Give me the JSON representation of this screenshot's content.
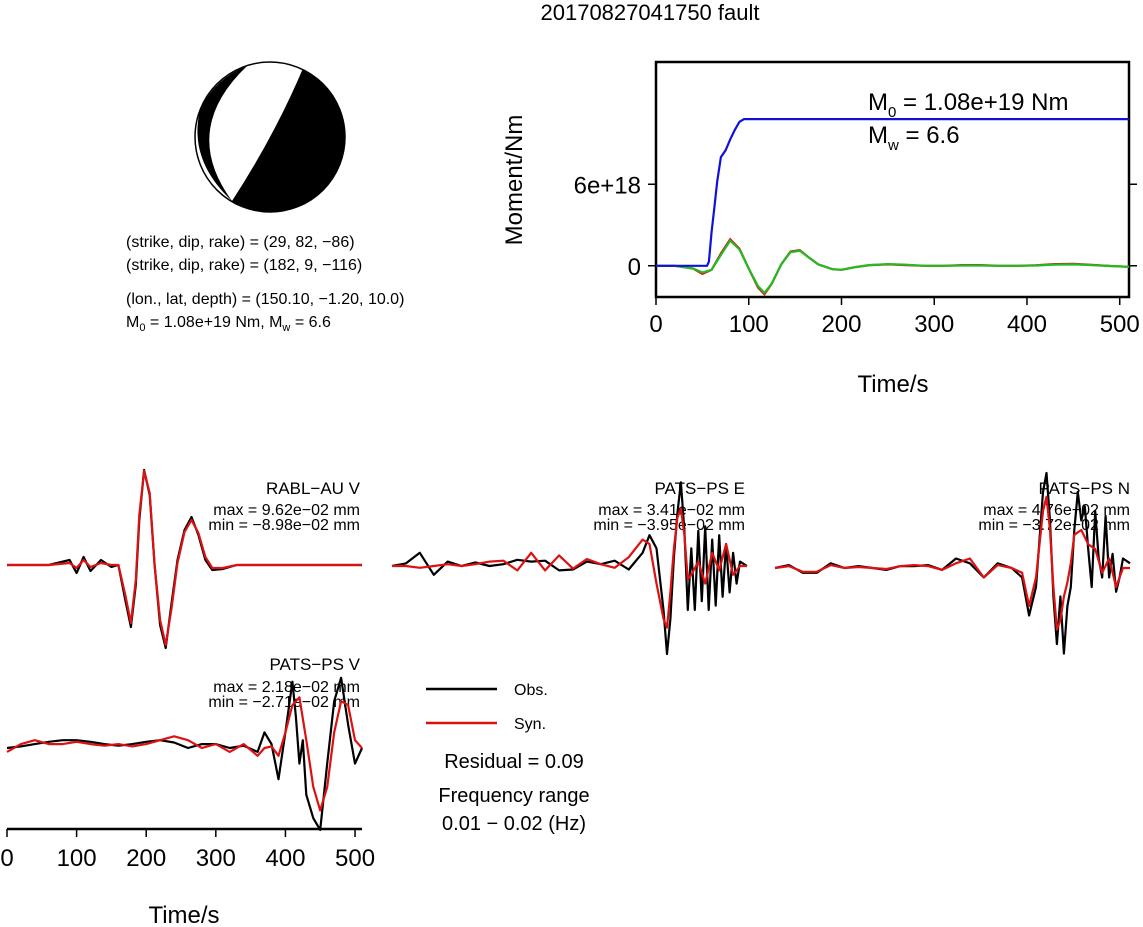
{
  "title": "20170827041750 fault",
  "focal_mechanism": {
    "line1": "(strike, dip, rake) = (29, 82, −86)",
    "line2": "(strike, dip, rake) = (182, 9, −116)",
    "line3": "(lon., lat, depth) = (150.10, −1.20, 10.0)",
    "m0_prefix": "M",
    "m0_sub": "0",
    "m0_text": " = 1.08e+19 Nm, M",
    "mw_sub": "w",
    "mw_text": " = 6.6"
  },
  "colors": {
    "moment_curve": "#1010dd",
    "observed": "#000000",
    "synthetic": "#dd1111",
    "stf_green": "#22bb22"
  },
  "chart_data": [
    {
      "type": "line",
      "id": "moment",
      "ylabel": "Moment/Nm",
      "xlabel": "Time/s",
      "xlim": [
        0,
        510
      ],
      "ylim": [
        -2.3e+18,
        1.5e+19
      ],
      "xticks": [
        0,
        100,
        200,
        300,
        400,
        500
      ],
      "yticks": [
        {
          "value": 0,
          "label": "0"
        },
        {
          "value": 6e+18,
          "label": "6e+18"
        }
      ],
      "annotation": {
        "m0_sym": "M",
        "m0_sub": "0",
        "m0_val": " = 1.08e+19 Nm",
        "mw_sym": "M",
        "mw_sub": "w",
        "mw_val": " = 6.6"
      },
      "series": [
        {
          "role": "cumulative moment",
          "color": "#1010dd",
          "x": [
            0,
            55,
            57,
            60,
            63,
            66,
            70,
            75,
            80,
            85,
            90,
            95,
            100,
            150,
            200,
            250,
            300,
            350,
            400,
            450,
            510
          ],
          "y": [
            0,
            0,
            3e+17,
            2.5e+18,
            4.3e+18,
            6.2e+18,
            8e+18,
            8.5e+18,
            9.3e+18,
            1e+19,
            1.06e+19,
            1.08e+19,
            1.08e+19,
            1.08e+19,
            1.08e+19,
            1.08e+19,
            1.08e+19,
            1.08e+19,
            1.08e+19,
            1.08e+19,
            1.08e+19
          ]
        },
        {
          "role": "moment rate (green)",
          "color": "#22bb22",
          "x": [
            0,
            20,
            40,
            50,
            60,
            70,
            80,
            90,
            100,
            110,
            117,
            125,
            135,
            145,
            155,
            165,
            175,
            190,
            200,
            215,
            230,
            250,
            270,
            290,
            310,
            330,
            350,
            370,
            390,
            410,
            430,
            450,
            470,
            490,
            510
          ],
          "y": [
            0,
            0,
            -2e+17,
            -5e+17,
            -3e+17,
            8e+17,
            1.85e+18,
            1.2e+18,
            -2e+17,
            -1.5e+18,
            -2e+18,
            -1.3e+18,
            1e+17,
            1e+18,
            1.1e+18,
            6e+17,
            1e+17,
            -2.5e+17,
            -3e+17,
            -1e+17,
            5e+16,
            1.2e+17,
            8e+16,
            0,
            0,
            2e+16,
            2e+16,
            0,
            0,
            2e+16,
            8e+16,
            1e+17,
            4e+16,
            -2e+16,
            -8e+16
          ]
        },
        {
          "role": "moment rate (red)",
          "color": "#dd1111",
          "x": [
            0,
            20,
            40,
            50,
            60,
            70,
            80,
            90,
            100,
            110,
            117,
            125,
            135,
            145,
            155,
            165,
            175,
            190,
            200,
            215,
            230,
            250,
            270,
            290,
            310,
            330,
            350,
            370,
            390,
            410,
            430,
            450,
            470,
            490,
            510
          ],
          "y": [
            0,
            0,
            -2e+17,
            -6e+17,
            -3e+17,
            9e+17,
            1.95e+18,
            1.25e+18,
            -2e+17,
            -1.6e+18,
            -2.1e+18,
            -1.3e+18,
            1e+17,
            1.05e+18,
            1.15e+18,
            6e+17,
            1e+17,
            -2.5e+17,
            -3e+17,
            -1e+17,
            5e+16,
            1e+17,
            4e+16,
            0,
            0,
            5e+16,
            5e+16,
            0,
            0,
            4e+16,
            1.2e+17,
            1.4e+17,
            6e+16,
            -2e+16,
            -8e+16
          ]
        }
      ]
    },
    {
      "type": "line",
      "id": "rabl-v",
      "station": "RABL−AU V",
      "max_label": "max = 9.62e−02 mm",
      "min_label": "min = −8.98e−02 mm",
      "ylim": [
        -1.0,
        1.0
      ],
      "xlim": [
        0,
        510
      ],
      "series": [
        {
          "name": "Obs.",
          "color": "#000000",
          "x": [
            0,
            60,
            90,
            100,
            110,
            120,
            135,
            150,
            160,
            170,
            178,
            185,
            190,
            197,
            205,
            212,
            220,
            228,
            236,
            245,
            255,
            265,
            275,
            285,
            295,
            310,
            330,
            360,
            400,
            450,
            510
          ],
          "y": [
            0,
            0,
            0.05,
            -0.08,
            0.08,
            -0.06,
            0.05,
            -0.02,
            0,
            -0.35,
            -0.62,
            -0.2,
            0.45,
            0.95,
            0.7,
            0,
            -0.6,
            -0.83,
            -0.4,
            0.05,
            0.35,
            0.48,
            0.3,
            0.05,
            -0.05,
            -0.04,
            0,
            0,
            0,
            0,
            0
          ]
        },
        {
          "name": "Syn.",
          "color": "#dd1111",
          "x": [
            0,
            60,
            90,
            100,
            110,
            120,
            135,
            150,
            160,
            170,
            178,
            185,
            190,
            197,
            205,
            212,
            220,
            228,
            236,
            245,
            255,
            265,
            275,
            285,
            295,
            310,
            330,
            360,
            400,
            450,
            510
          ],
          "y": [
            0,
            0,
            0.02,
            -0.03,
            0.05,
            -0.02,
            0.02,
            0,
            0,
            -0.3,
            -0.58,
            -0.15,
            0.5,
            0.94,
            0.72,
            0,
            -0.55,
            -0.8,
            -0.45,
            0.02,
            0.33,
            0.45,
            0.32,
            0.08,
            -0.03,
            -0.03,
            0,
            0,
            0,
            0,
            0
          ]
        }
      ]
    },
    {
      "type": "line",
      "id": "pats-e",
      "station": "PATS−PS E",
      "max_label": "max = 3.41e−02 mm",
      "min_label": "min = −3.95e−02 mm",
      "ylim": [
        -1.0,
        1.0
      ],
      "xlim": [
        0,
        510
      ],
      "series": [
        {
          "name": "Obs.",
          "color": "#000000",
          "x": [
            0,
            20,
            40,
            60,
            80,
            100,
            120,
            140,
            160,
            180,
            200,
            220,
            240,
            260,
            280,
            300,
            320,
            340,
            360,
            370,
            380,
            390,
            395,
            400,
            405,
            410,
            415,
            420,
            425,
            430,
            435,
            440,
            445,
            450,
            455,
            460,
            465,
            470,
            475,
            480,
            485,
            490,
            495,
            500,
            510
          ],
          "y": [
            0,
            0.03,
            0.15,
            -0.1,
            0.05,
            0,
            0.04,
            0,
            0.02,
            0.07,
            0.05,
            0.06,
            -0.05,
            -0.04,
            0.05,
            0.02,
            0.06,
            -0.04,
            0.15,
            0.35,
            0.2,
            -0.5,
            -1.0,
            -0.6,
            0.1,
            0.6,
            0.95,
            0.4,
            -0.5,
            0.2,
            -0.5,
            0.4,
            -0.4,
            0.45,
            -0.5,
            0.3,
            -0.45,
            0.35,
            -0.35,
            0.25,
            -0.3,
            0.15,
            -0.2,
            0.05,
            0
          ]
        },
        {
          "name": "Syn.",
          "color": "#dd1111",
          "x": [
            0,
            20,
            40,
            60,
            80,
            100,
            120,
            140,
            160,
            180,
            200,
            220,
            240,
            260,
            280,
            300,
            320,
            340,
            360,
            370,
            380,
            390,
            395,
            400,
            405,
            410,
            415,
            420,
            425,
            430,
            440,
            450,
            460,
            470,
            480,
            490,
            500,
            510
          ],
          "y": [
            0,
            0,
            -0.02,
            0,
            0.02,
            0,
            0.02,
            0.05,
            0.06,
            -0.05,
            0.15,
            -0.05,
            0.12,
            -0.03,
            0.08,
            0.02,
            -0.02,
            0.1,
            0.3,
            0.25,
            -0.2,
            -0.6,
            -0.7,
            -0.3,
            0.2,
            0.55,
            0.65,
            0.35,
            -0.15,
            -0.1,
            0.05,
            -0.2,
            0.15,
            -0.05,
            0.25,
            -0.1,
            0,
            0
          ]
        }
      ]
    },
    {
      "type": "line",
      "id": "pats-n",
      "station": "PATS−PS N",
      "max_label": "max = 4.76e−02 mm",
      "min_label": "min = −3.72e−02 mm",
      "ylim": [
        -1.0,
        1.0
      ],
      "xlim": [
        0,
        510
      ],
      "series": [
        {
          "name": "Obs.",
          "color": "#000000",
          "x": [
            0,
            20,
            40,
            60,
            80,
            100,
            120,
            140,
            160,
            180,
            200,
            220,
            240,
            260,
            280,
            300,
            320,
            340,
            355,
            365,
            375,
            385,
            390,
            395,
            400,
            405,
            410,
            415,
            420,
            425,
            430,
            435,
            440,
            445,
            450,
            455,
            460,
            465,
            470,
            475,
            480,
            485,
            490,
            495,
            500,
            510
          ],
          "y": [
            0,
            0.03,
            -0.05,
            -0.05,
            0.05,
            0,
            0.02,
            0,
            -0.02,
            0.02,
            0.02,
            0.03,
            -0.02,
            0.1,
            0.05,
            -0.1,
            0.05,
            0,
            -0.1,
            -0.5,
            -0.2,
            0.8,
            1.0,
            0.5,
            -0.3,
            -0.8,
            -0.3,
            -0.9,
            -0.4,
            -0.2,
            0.4,
            0.8,
            0.5,
            0.65,
            0.2,
            -0.2,
            0.6,
            0.1,
            -0.1,
            0.55,
            -0.1,
            0.15,
            -0.25,
            -0.1,
            0.1,
            0.05
          ]
        },
        {
          "name": "Syn.",
          "color": "#dd1111",
          "x": [
            0,
            20,
            40,
            60,
            80,
            100,
            120,
            140,
            160,
            180,
            200,
            220,
            240,
            260,
            280,
            300,
            320,
            340,
            355,
            365,
            375,
            385,
            390,
            395,
            400,
            405,
            410,
            415,
            420,
            425,
            430,
            440,
            450,
            460,
            470,
            480,
            490,
            500,
            510
          ],
          "y": [
            0,
            0.02,
            -0.04,
            -0.04,
            0.03,
            0,
            0.01,
            0,
            -0.01,
            0.02,
            0.03,
            0.02,
            -0.02,
            0.05,
            0.1,
            -0.1,
            0.03,
            0,
            -0.05,
            -0.4,
            -0.1,
            0.6,
            0.75,
            0.4,
            -0.2,
            -0.65,
            -0.55,
            -0.3,
            -0.15,
            0.05,
            0.35,
            0.4,
            0.25,
            0.2,
            -0.05,
            0.1,
            -0.2,
            0,
            0
          ]
        }
      ]
    },
    {
      "type": "line",
      "id": "pats-v",
      "station": "PATS−PS V",
      "max_label": "max = 2.18e−02 mm",
      "min_label": "min = −2.71e−02 mm",
      "xlabel": "Time/s",
      "xlim": [
        0,
        510
      ],
      "xticks": [
        0,
        100,
        200,
        300,
        400,
        500
      ],
      "ylim": [
        -1.0,
        1.0
      ],
      "series": [
        {
          "name": "Obs.",
          "color": "#000000",
          "x": [
            0,
            20,
            40,
            60,
            80,
            100,
            120,
            140,
            160,
            180,
            200,
            220,
            240,
            260,
            280,
            300,
            320,
            340,
            360,
            370,
            380,
            390,
            400,
            410,
            415,
            420,
            425,
            430,
            440,
            450,
            460,
            470,
            480,
            490,
            500,
            510
          ],
          "y": [
            0,
            0.02,
            0.05,
            0.08,
            0.1,
            0.1,
            0.08,
            0.05,
            0.03,
            0.05,
            0.08,
            0.1,
            0.07,
            0,
            0.05,
            0.05,
            0,
            0.03,
            -0.05,
            0.2,
            0.05,
            -0.4,
            0.2,
            0.85,
            0.4,
            -0.2,
            0.1,
            -0.6,
            -0.9,
            -1.05,
            -0.2,
            0.6,
            0.9,
            0.3,
            -0.2,
            0
          ]
        },
        {
          "name": "Syn.",
          "color": "#dd1111",
          "x": [
            0,
            20,
            40,
            60,
            80,
            100,
            120,
            140,
            160,
            180,
            200,
            220,
            240,
            260,
            280,
            300,
            320,
            340,
            360,
            370,
            380,
            390,
            400,
            410,
            420,
            430,
            440,
            450,
            460,
            470,
            480,
            490,
            500,
            510
          ],
          "y": [
            -0.05,
            0.05,
            0.1,
            0.05,
            0.05,
            0.08,
            0.05,
            0.03,
            0.05,
            0.02,
            0.05,
            0.1,
            0.15,
            0.1,
            0,
            0.05,
            -0.05,
            0.05,
            -0.1,
            0,
            0.02,
            -0.1,
            0.2,
            0.55,
            0.65,
            0.1,
            -0.5,
            -0.8,
            -0.5,
            0.2,
            0.6,
            0.55,
            0.1,
            0
          ]
        }
      ]
    }
  ],
  "legend": {
    "obs_label": "Obs.",
    "syn_label": "Syn."
  },
  "residual": "Residual = 0.09",
  "frequency_range_label": "Frequency range",
  "frequency_range_value": "0.01 − 0.02 (Hz)"
}
